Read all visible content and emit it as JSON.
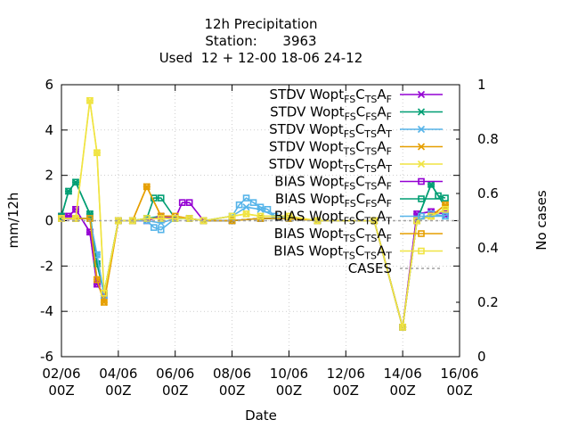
{
  "chart_data": {
    "type": "line",
    "title": [
      "12h Precipitation",
      "Station:      3963",
      "Used  12 + 12-00 18-06 24-12"
    ],
    "xlabel": "Date",
    "ylabel": "mm/12h",
    "y2label": "No cases",
    "x_axis": {
      "unit": "days since 02/06 00Z",
      "range": [
        0,
        14
      ],
      "ticks": [
        {
          "v": 0,
          "line1": "02/06",
          "line2": "00Z"
        },
        {
          "v": 2,
          "line1": "04/06",
          "line2": "00Z"
        },
        {
          "v": 4,
          "line1": "06/06",
          "line2": "00Z"
        },
        {
          "v": 6,
          "line1": "08/06",
          "line2": "00Z"
        },
        {
          "v": 8,
          "line1": "10/06",
          "line2": "00Z"
        },
        {
          "v": 10,
          "line1": "12/06",
          "line2": "00Z"
        },
        {
          "v": 12,
          "line1": "14/06",
          "line2": "00Z"
        },
        {
          "v": 14,
          "line1": "16/06",
          "line2": "00Z"
        }
      ]
    },
    "ylim": [
      -6,
      6
    ],
    "yticks": [
      -6,
      -4,
      -2,
      0,
      2,
      4,
      6
    ],
    "y2lim": [
      0,
      1
    ],
    "y2ticks": [
      0,
      0.2,
      0.4,
      0.6,
      0.8,
      1
    ],
    "grid": true,
    "legend_position": "top-right",
    "series": [
      {
        "legend": [
          "STDV Wopt",
          "FS",
          "C",
          "TS",
          "A",
          "F"
        ],
        "color": "#9400d3",
        "marker": "x",
        "stat": "STDV",
        "points": [
          [
            0,
            0.2
          ],
          [
            0.25,
            0.2
          ],
          [
            0.5,
            0.5
          ],
          [
            1,
            -0.5
          ],
          [
            1.25,
            -2.8
          ],
          [
            1.5,
            -3.3
          ],
          [
            2,
            0
          ],
          [
            2.5,
            0
          ],
          [
            3,
            0
          ],
          [
            3.5,
            0.2
          ],
          [
            4,
            0.1
          ],
          [
            4.5,
            0.1
          ],
          [
            5,
            0
          ],
          [
            6,
            0
          ],
          [
            7,
            0.1
          ],
          [
            8,
            0.1
          ],
          [
            9,
            0
          ],
          [
            11,
            0
          ],
          [
            12,
            -4.7
          ],
          [
            12.5,
            0.3
          ],
          [
            13,
            0.4
          ],
          [
            13.5,
            0.3
          ]
        ]
      },
      {
        "legend": [
          "STDV Wopt",
          "FS",
          "C",
          "FS",
          "A",
          "F"
        ],
        "color": "#009e73",
        "marker": "x",
        "stat": "STDV",
        "points": [
          [
            0,
            0.2
          ],
          [
            0.25,
            1.3
          ],
          [
            0.5,
            1.7
          ],
          [
            1,
            0.3
          ],
          [
            1.25,
            -1.9
          ],
          [
            1.5,
            -3.2
          ],
          [
            2,
            0
          ],
          [
            2.5,
            0
          ],
          [
            3,
            0.1
          ],
          [
            3.5,
            0.2
          ],
          [
            4,
            0.1
          ],
          [
            4.5,
            0.1
          ],
          [
            5,
            0
          ],
          [
            6,
            0
          ],
          [
            7,
            0.1
          ],
          [
            8,
            0.1
          ],
          [
            9,
            0
          ],
          [
            11,
            0
          ],
          [
            12,
            -4.7
          ],
          [
            12.5,
            0
          ],
          [
            13,
            1.6
          ],
          [
            13.5,
            0.6
          ]
        ]
      },
      {
        "legend": [
          "STDV Wopt",
          "FS",
          "C",
          "TS",
          "A",
          "T"
        ],
        "color": "#56b4e9",
        "marker": "x",
        "stat": "STDV",
        "points": [
          [
            0,
            0.1
          ],
          [
            0.5,
            0.1
          ],
          [
            1,
            0.1
          ],
          [
            1.25,
            -1.5
          ],
          [
            1.5,
            -3.3
          ],
          [
            2,
            0
          ],
          [
            2.5,
            0
          ],
          [
            3,
            0
          ],
          [
            3.5,
            -0.1
          ],
          [
            4,
            0.1
          ],
          [
            4.5,
            0.1
          ],
          [
            5,
            0
          ],
          [
            6,
            0.2
          ],
          [
            6.5,
            0.6
          ],
          [
            7,
            0.5
          ],
          [
            7.5,
            0.2
          ],
          [
            8,
            0.1
          ],
          [
            9,
            0
          ],
          [
            11,
            0
          ],
          [
            12,
            -4.7
          ],
          [
            12.5,
            0
          ],
          [
            13,
            0.3
          ],
          [
            13.5,
            0.2
          ]
        ]
      },
      {
        "legend": [
          "STDV Wopt",
          "TS",
          "C",
          "TS",
          "A",
          "F"
        ],
        "color": "#e69f00",
        "marker": "x",
        "stat": "STDV",
        "points": [
          [
            0,
            0.1
          ],
          [
            0.5,
            0.1
          ],
          [
            1,
            0.1
          ],
          [
            1.25,
            -2.6
          ],
          [
            1.5,
            -3.6
          ],
          [
            2,
            0
          ],
          [
            2.5,
            0
          ],
          [
            3,
            1.5
          ],
          [
            3.5,
            0.2
          ],
          [
            4,
            0.2
          ],
          [
            4.5,
            0.1
          ],
          [
            5,
            0
          ],
          [
            6,
            0
          ],
          [
            7,
            0.1
          ],
          [
            8,
            0.1
          ],
          [
            9,
            0
          ],
          [
            11,
            0
          ],
          [
            12,
            -4.7
          ],
          [
            12.5,
            0
          ],
          [
            13,
            0.2
          ],
          [
            13.5,
            0.7
          ]
        ]
      },
      {
        "legend": [
          "STDV Wopt",
          "TS",
          "C",
          "TS",
          "A",
          "T"
        ],
        "color": "#f0e442",
        "marker": "x",
        "stat": "STDV",
        "points": [
          [
            0,
            0.1
          ],
          [
            0.5,
            0.1
          ],
          [
            1,
            5.3
          ],
          [
            1.25,
            3
          ],
          [
            1.5,
            -3.2
          ],
          [
            2,
            0
          ],
          [
            2.5,
            0
          ],
          [
            3,
            0.1
          ],
          [
            3.5,
            0.1
          ],
          [
            4,
            0.1
          ],
          [
            4.5,
            0.1
          ],
          [
            5,
            0
          ],
          [
            6,
            0.2
          ],
          [
            6.5,
            0.3
          ],
          [
            7,
            0.2
          ],
          [
            8,
            0.2
          ],
          [
            9,
            0
          ],
          [
            11,
            0
          ],
          [
            12,
            -4.7
          ],
          [
            12.5,
            0
          ],
          [
            13,
            0.2
          ],
          [
            13.5,
            0.5
          ]
        ]
      },
      {
        "legend": [
          "BIAS Wopt",
          "FS",
          "C",
          "TS",
          "A",
          "F"
        ],
        "color": "#9400d3",
        "marker": "square",
        "stat": "BIAS",
        "points": [
          [
            0,
            0.2
          ],
          [
            0.25,
            0.2
          ],
          [
            0.5,
            0.5
          ],
          [
            1,
            -0.5
          ],
          [
            1.25,
            -2.8
          ],
          [
            1.5,
            -3.3
          ],
          [
            2,
            0
          ],
          [
            2.5,
            0
          ],
          [
            3,
            0
          ],
          [
            3.5,
            0.2
          ],
          [
            4,
            0.1
          ],
          [
            4.25,
            0.8
          ],
          [
            4.5,
            0.8
          ],
          [
            5,
            0
          ],
          [
            6,
            0
          ],
          [
            7,
            0.1
          ],
          [
            8,
            0.1
          ],
          [
            9,
            0
          ],
          [
            11,
            0
          ],
          [
            12,
            -4.7
          ],
          [
            12.5,
            0.3
          ],
          [
            13,
            0.4
          ],
          [
            13.5,
            0.3
          ]
        ]
      },
      {
        "legend": [
          "BIAS Wopt",
          "FS",
          "C",
          "FS",
          "A",
          "F"
        ],
        "color": "#009e73",
        "marker": "square",
        "stat": "BIAS",
        "points": [
          [
            0,
            0.2
          ],
          [
            0.25,
            1.3
          ],
          [
            0.5,
            1.7
          ],
          [
            1,
            0.3
          ],
          [
            1.25,
            -1.9
          ],
          [
            1.5,
            -3.2
          ],
          [
            2,
            0
          ],
          [
            2.5,
            0
          ],
          [
            3,
            0.1
          ],
          [
            3.25,
            1
          ],
          [
            3.5,
            1
          ],
          [
            4,
            0.1
          ],
          [
            4.5,
            0.1
          ],
          [
            5,
            0
          ],
          [
            6,
            0
          ],
          [
            7,
            0.1
          ],
          [
            8,
            0.1
          ],
          [
            9,
            0
          ],
          [
            11,
            0
          ],
          [
            12,
            -4.7
          ],
          [
            12.5,
            0
          ],
          [
            13,
            1.6
          ],
          [
            13.25,
            1.1
          ],
          [
            13.5,
            1
          ]
        ]
      },
      {
        "legend": [
          "BIAS Wopt",
          "FS",
          "C",
          "TS",
          "A",
          "T"
        ],
        "color": "#56b4e9",
        "marker": "square",
        "stat": "BIAS",
        "points": [
          [
            0,
            0.1
          ],
          [
            0.5,
            0.1
          ],
          [
            1,
            0.1
          ],
          [
            1.25,
            -1.5
          ],
          [
            1.5,
            -3.3
          ],
          [
            2,
            0
          ],
          [
            2.5,
            0
          ],
          [
            3,
            0
          ],
          [
            3.25,
            -0.3
          ],
          [
            3.5,
            -0.4
          ],
          [
            4,
            0.1
          ],
          [
            4.5,
            0.1
          ],
          [
            5,
            0
          ],
          [
            6,
            0.2
          ],
          [
            6.25,
            0.7
          ],
          [
            6.5,
            1
          ],
          [
            6.75,
            0.8
          ],
          [
            7,
            0.6
          ],
          [
            7.25,
            0.5
          ],
          [
            7.5,
            0.2
          ],
          [
            8,
            0.1
          ],
          [
            9,
            0
          ],
          [
            11,
            0
          ],
          [
            12,
            -4.7
          ],
          [
            12.5,
            0
          ],
          [
            13,
            0.3
          ],
          [
            13.5,
            0.2
          ]
        ]
      },
      {
        "legend": [
          "BIAS Wopt",
          "TS",
          "C",
          "TS",
          "A",
          "F"
        ],
        "color": "#e69f00",
        "marker": "square",
        "stat": "BIAS",
        "points": [
          [
            0,
            0.1
          ],
          [
            0.5,
            0.1
          ],
          [
            1,
            0.1
          ],
          [
            1.25,
            -2.6
          ],
          [
            1.5,
            -3.6
          ],
          [
            2,
            0
          ],
          [
            2.5,
            0
          ],
          [
            3,
            1.5
          ],
          [
            3.5,
            0.2
          ],
          [
            4,
            0.2
          ],
          [
            4.5,
            0.1
          ],
          [
            5,
            0
          ],
          [
            6,
            0
          ],
          [
            7,
            0.1
          ],
          [
            8,
            0.1
          ],
          [
            9,
            0
          ],
          [
            11,
            0
          ],
          [
            12,
            -4.7
          ],
          [
            12.5,
            0
          ],
          [
            13,
            0.2
          ],
          [
            13.5,
            0.7
          ]
        ]
      },
      {
        "legend": [
          "BIAS Wopt",
          "TS",
          "C",
          "TS",
          "A",
          "T"
        ],
        "color": "#f0e442",
        "marker": "square",
        "stat": "BIAS",
        "points": [
          [
            0,
            0.1
          ],
          [
            0.5,
            0.1
          ],
          [
            1,
            5.3
          ],
          [
            1.25,
            3
          ],
          [
            1.5,
            -3.2
          ],
          [
            2,
            0
          ],
          [
            2.5,
            0
          ],
          [
            3,
            0.1
          ],
          [
            3.5,
            0.1
          ],
          [
            4,
            0.1
          ],
          [
            4.5,
            0.1
          ],
          [
            5,
            0
          ],
          [
            6,
            0.2
          ],
          [
            6.5,
            0.3
          ],
          [
            7,
            0.2
          ],
          [
            8,
            0.2
          ],
          [
            9,
            0
          ],
          [
            11,
            0
          ],
          [
            12,
            -4.7
          ],
          [
            12.5,
            0
          ],
          [
            13,
            0.2
          ],
          [
            13.5,
            0.5
          ]
        ]
      },
      {
        "legend": [
          "CASES"
        ],
        "color": "#a0a0a0",
        "marker": "none",
        "stat": "CASES",
        "dashed": true,
        "axis": "y2",
        "points": [
          [
            0,
            0.5
          ],
          [
            14,
            0.5
          ]
        ]
      }
    ]
  }
}
